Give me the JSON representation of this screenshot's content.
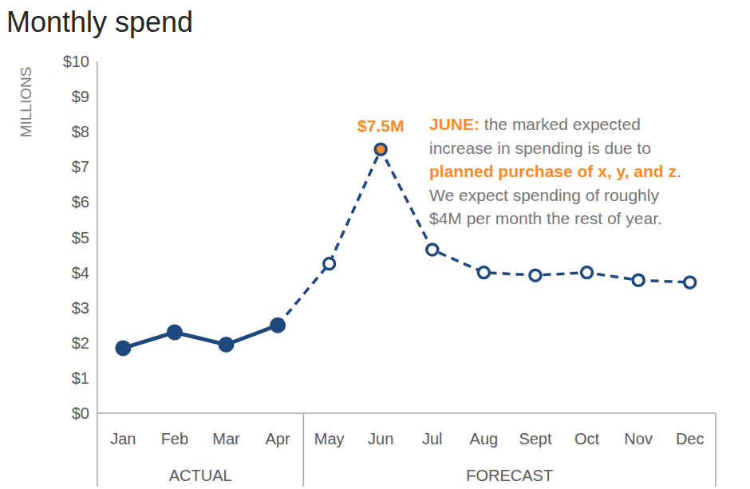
{
  "chart_data": {
    "type": "line",
    "title": "Monthly spend",
    "y_label": "MILLIONS",
    "categories": [
      "Jan",
      "Feb",
      "Mar",
      "Apr",
      "May",
      "Jun",
      "Jul",
      "Aug",
      "Sept",
      "Oct",
      "Nov",
      "Dec"
    ],
    "series": [
      {
        "name": "ACTUAL",
        "color": "#1f497d",
        "line_style": "solid",
        "marker": "circle",
        "values": [
          1.85,
          2.3,
          1.95,
          2.5,
          null,
          null,
          null,
          null,
          null,
          null,
          null,
          null
        ]
      },
      {
        "name": "FORECAST",
        "color": "#1f497d",
        "line_style": "dashed",
        "marker": "circle",
        "values": [
          null,
          null,
          null,
          2.5,
          4.25,
          7.5,
          4.65,
          4.0,
          3.92,
          4.0,
          3.78,
          3.72
        ],
        "colors": [
          null,
          null,
          null,
          "#ffffff",
          "#ffffff",
          "#f58b2b",
          "#ffffff",
          "#ffffff",
          "#ffffff",
          "#ffffff",
          "#ffffff",
          "#ffffff"
        ],
        "value_labels": [
          null,
          null,
          null,
          null,
          null,
          "$7.5M",
          null,
          null,
          null,
          null,
          null,
          null
        ]
      }
    ],
    "ylim": [
      0,
      10
    ],
    "yticks": [
      {
        "value": 0,
        "label": "$0"
      },
      {
        "value": 1,
        "label": "$1"
      },
      {
        "value": 2,
        "label": "$2"
      },
      {
        "value": 3,
        "label": "$3"
      },
      {
        "value": 4,
        "label": "$4"
      },
      {
        "value": 5,
        "label": "$5"
      },
      {
        "value": 6,
        "label": "$6"
      },
      {
        "value": 7,
        "label": "$7"
      },
      {
        "value": 8,
        "label": "$8"
      },
      {
        "value": 9,
        "label": "$9"
      },
      {
        "value": 10,
        "label": "$10"
      }
    ],
    "grid": false,
    "annotation": {
      "lines": [
        [
          {
            "text": "JUNE:",
            "color": "#f58b2b"
          },
          {
            "text": " the marked expected"
          }
        ],
        [
          {
            "text": "increase in spending is due to"
          }
        ],
        [
          {
            "text": "planned purchase of x, y, and z",
            "color": "#f58b2b"
          },
          {
            "text": "."
          }
        ],
        [
          {
            "text": "We expect spending of roughly"
          }
        ],
        [
          {
            "text": "$4M per month the rest of year."
          }
        ]
      ]
    }
  }
}
